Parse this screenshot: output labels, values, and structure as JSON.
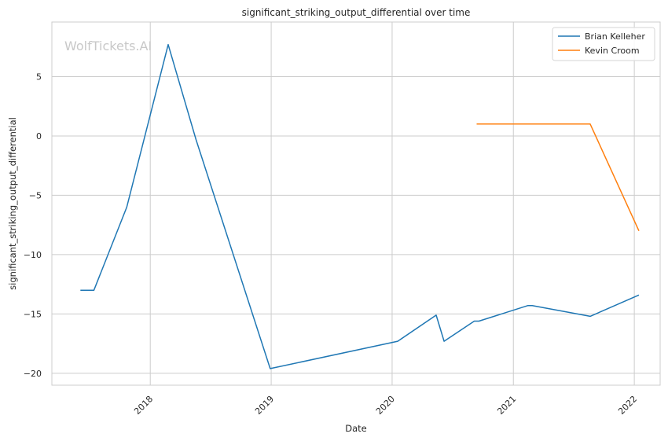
{
  "chart_data": {
    "type": "line",
    "title": "significant_striking_output_differential over time",
    "xlabel": "Date",
    "ylabel": "significant_striking_output_differential",
    "watermark": "WolfTickets.AI",
    "x_ticks": [
      "2018",
      "2019",
      "2020",
      "2021",
      "2022"
    ],
    "y_ticks": [
      5,
      0,
      -5,
      -10,
      -15,
      -20
    ],
    "y_tick_labels": [
      "5",
      "0",
      "−5",
      "−10",
      "−15",
      "−20"
    ],
    "xlim": [
      "2017-03-10",
      "2022-03-20"
    ],
    "ylim": [
      -21,
      9.6
    ],
    "grid": true,
    "legend_position": "top-right",
    "series": [
      {
        "name": "Brian Kelleher",
        "color": "#1f77b4",
        "points": [
          [
            "2017-06-04",
            -13.0
          ],
          [
            "2017-07-15",
            -13.0
          ],
          [
            "2017-10-22",
            -6.0
          ],
          [
            "2018-02-24",
            7.7
          ],
          [
            "2018-05-19",
            -0.3
          ],
          [
            "2018-12-29",
            -19.6
          ],
          [
            "2020-01-18",
            -17.3
          ],
          [
            "2020-05-13",
            -15.1
          ],
          [
            "2020-06-06",
            -17.3
          ],
          [
            "2020-09-05",
            -15.6
          ],
          [
            "2020-09-19",
            -15.6
          ],
          [
            "2021-02-13",
            -14.3
          ],
          [
            "2021-02-27",
            -14.3
          ],
          [
            "2021-08-21",
            -15.2
          ],
          [
            "2022-01-15",
            -13.4
          ]
        ]
      },
      {
        "name": "Kevin Croom",
        "color": "#ff7f0e",
        "points": [
          [
            "2020-09-12",
            1.0
          ],
          [
            "2021-08-21",
            1.0
          ],
          [
            "2022-01-15",
            -8.0
          ]
        ]
      }
    ]
  }
}
